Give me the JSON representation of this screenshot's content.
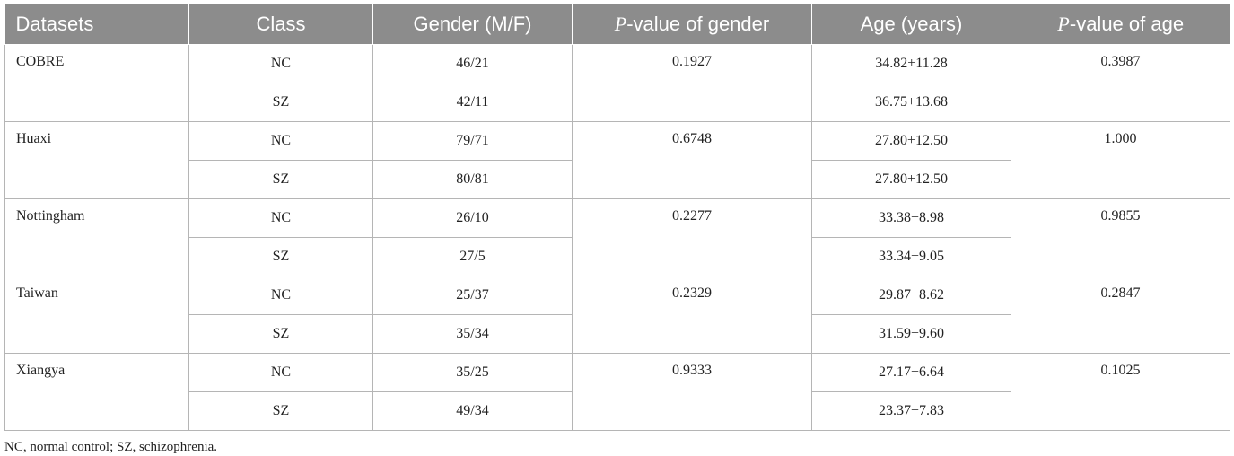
{
  "headers": {
    "datasets": "Datasets",
    "class": "Class",
    "gender": "Gender (M/F)",
    "p_gender_italic": "P",
    "p_gender_rest": "-value of gender",
    "age": "Age (years)",
    "p_age_italic": "P",
    "p_age_rest": "-value of age"
  },
  "groups": [
    {
      "name": "COBRE",
      "p_gender": "0.1927",
      "p_age": "0.3987",
      "rows": [
        {
          "class": "NC",
          "gender": "46/21",
          "age": "34.82+11.28"
        },
        {
          "class": "SZ",
          "gender": "42/11",
          "age": "36.75+13.68"
        }
      ]
    },
    {
      "name": "Huaxi",
      "p_gender": "0.6748",
      "p_age": "1.000",
      "rows": [
        {
          "class": "NC",
          "gender": "79/71",
          "age": "27.80+12.50"
        },
        {
          "class": "SZ",
          "gender": "80/81",
          "age": "27.80+12.50"
        }
      ]
    },
    {
      "name": "Nottingham",
      "p_gender": "0.2277",
      "p_age": "0.9855",
      "rows": [
        {
          "class": "NC",
          "gender": "26/10",
          "age": "33.38+8.98"
        },
        {
          "class": "SZ",
          "gender": "27/5",
          "age": "33.34+9.05"
        }
      ]
    },
    {
      "name": "Taiwan",
      "p_gender": "0.2329",
      "p_age": "0.2847",
      "rows": [
        {
          "class": "NC",
          "gender": "25/37",
          "age": "29.87+8.62"
        },
        {
          "class": "SZ",
          "gender": "35/34",
          "age": "31.59+9.60"
        }
      ]
    },
    {
      "name": "Xiangya",
      "p_gender": "0.9333",
      "p_age": "0.1025",
      "rows": [
        {
          "class": "NC",
          "gender": "35/25",
          "age": "27.17+6.64"
        },
        {
          "class": "SZ",
          "gender": "49/34",
          "age": "23.37+7.83"
        }
      ]
    }
  ],
  "footnote": "NC, normal control; SZ, schizophrenia."
}
